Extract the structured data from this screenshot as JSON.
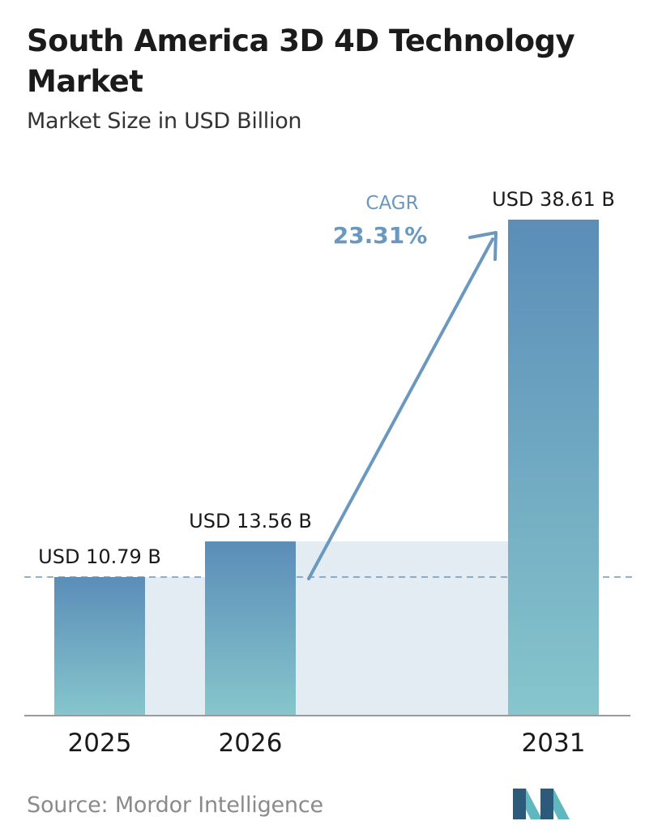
{
  "header": {
    "title": "South America 3D 4D Technology Market",
    "subtitle": "Market Size in USD Billion"
  },
  "chart_data": {
    "type": "bar",
    "categories": [
      "2025",
      "2026",
      "2031"
    ],
    "values": [
      10.79,
      13.56,
      38.61
    ],
    "value_labels": [
      "USD 10.79 B",
      "USD 13.56 B",
      "USD 38.61 B"
    ],
    "title": "South America 3D 4D Technology Market",
    "subtitle": "Market Size in USD Billion",
    "xlabel": "",
    "ylabel": "",
    "grid": false,
    "annotations": {
      "cagr_label": "CAGR",
      "cagr_value": "23.31%"
    }
  },
  "footer": {
    "source": "Source: Mordor Intelligence",
    "logo": "mordor-intelligence-logo"
  },
  "colors": {
    "bar_top": "#5b8db8",
    "bar_bottom": "#86c6cc",
    "band": "#e3ebf3",
    "arrow": "#6b98bf",
    "cagr": "#6b98bf",
    "axis": "#9a9a9a",
    "logo_dark": "#2b5a7a",
    "logo_light": "#5fb8c0"
  }
}
